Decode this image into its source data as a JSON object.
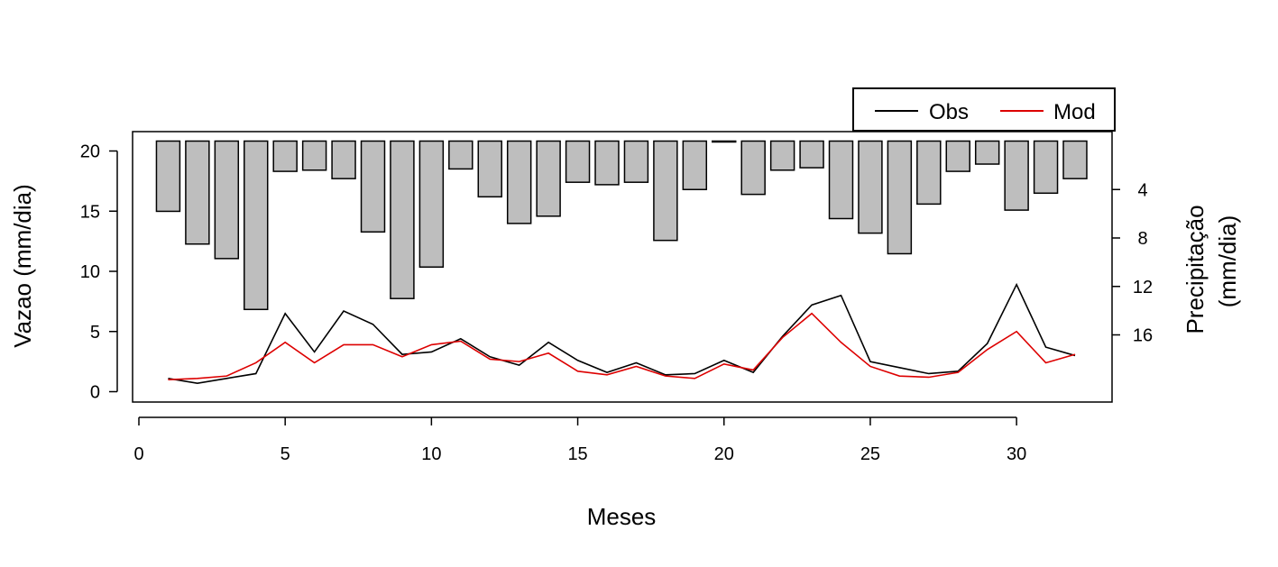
{
  "chart_data": {
    "type": "line",
    "xlabel": "Meses",
    "ylabel": "Vazao (mm/dia)",
    "y2label_line1": "Precipitação",
    "y2label_line2": "(mm/dia)",
    "xlim": [
      0,
      33
    ],
    "ylim": [
      0,
      21
    ],
    "y2lim": [
      0,
      21.7
    ],
    "y2_inverted": true,
    "xticks": [
      0,
      5,
      10,
      15,
      20,
      25,
      30
    ],
    "yticks": [
      0,
      5,
      10,
      15,
      20
    ],
    "y2ticks": [
      4,
      8,
      12,
      16
    ],
    "legend_position": "top-right",
    "grid": false,
    "x": [
      1,
      2,
      3,
      4,
      5,
      6,
      7,
      8,
      9,
      10,
      11,
      12,
      13,
      14,
      15,
      16,
      17,
      18,
      19,
      20,
      21,
      22,
      23,
      24,
      25,
      26,
      27,
      28,
      29,
      30,
      31,
      32
    ],
    "series": [
      {
        "name": "Obs",
        "kind": "line",
        "color": "#000000",
        "values": [
          1.1,
          0.7,
          1.1,
          1.5,
          6.5,
          3.3,
          6.7,
          5.6,
          3.1,
          3.3,
          4.4,
          2.9,
          2.2,
          4.1,
          2.6,
          1.6,
          2.4,
          1.4,
          1.5,
          2.6,
          1.6,
          4.6,
          7.2,
          8.0,
          2.5,
          2.0,
          1.5,
          1.7,
          4.0,
          8.9,
          3.7,
          3.0
        ]
      },
      {
        "name": "Mod",
        "kind": "line",
        "color": "#dd0000",
        "values": [
          1.0,
          1.1,
          1.3,
          2.4,
          4.1,
          2.4,
          3.9,
          3.9,
          2.9,
          3.9,
          4.2,
          2.7,
          2.5,
          3.2,
          1.7,
          1.4,
          2.1,
          1.3,
          1.1,
          2.3,
          1.8,
          4.5,
          6.5,
          4.1,
          2.1,
          1.3,
          1.2,
          1.6,
          3.5,
          5.0,
          2.4,
          3.1
        ]
      },
      {
        "name": "Precipitação",
        "kind": "bar",
        "color": "#bebebe",
        "values": [
          5.8,
          8.5,
          9.7,
          13.9,
          2.5,
          2.4,
          3.1,
          7.5,
          13.0,
          10.4,
          2.3,
          4.6,
          6.8,
          6.2,
          3.4,
          3.6,
          3.4,
          8.2,
          4.0,
          0.05,
          4.4,
          2.4,
          2.2,
          6.4,
          7.6,
          9.3,
          5.2,
          2.5,
          1.9,
          5.7,
          4.3,
          3.1
        ]
      }
    ]
  }
}
